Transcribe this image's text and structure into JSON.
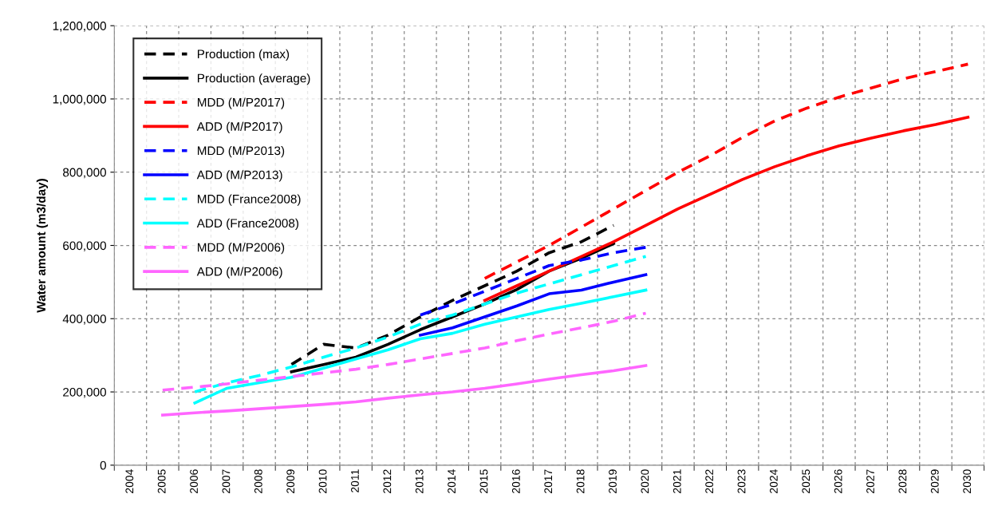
{
  "chart_data": {
    "type": "line",
    "ylabel": "Water amount (m3/day)",
    "categories": [
      "2004",
      "2005",
      "2006",
      "2007",
      "2008",
      "2009",
      "2010",
      "2011",
      "2012",
      "2013",
      "2014",
      "2015",
      "2016",
      "2017",
      "2018",
      "2019",
      "2020",
      "2021",
      "2022",
      "2023",
      "2024",
      "2025",
      "2026",
      "2027",
      "2028",
      "2029",
      "2030"
    ],
    "ylim": [
      0,
      1200000
    ],
    "yticks": [
      0,
      {
        "value": 200000,
        "label": "200,000"
      },
      {
        "value": 400000,
        "label": "400,000"
      },
      {
        "value": 600000,
        "label": "600,000"
      },
      {
        "value": 800000,
        "label": "800,000"
      },
      {
        "value": 1000000,
        "label": "1,000,000"
      },
      {
        "value": 1200000,
        "label": "1,200,000"
      }
    ],
    "grid": true,
    "legend": "top left",
    "marker": "none",
    "series": [
      {
        "name": "Production (max)",
        "color": "#000000",
        "line_style": "dashed",
        "values": [
          null,
          null,
          null,
          null,
          null,
          275000,
          330000,
          320000,
          355000,
          405000,
          450000,
          490000,
          530000,
          580000,
          610000,
          655000,
          null,
          null,
          null,
          null,
          null,
          null,
          null,
          null,
          null,
          null,
          null
        ]
      },
      {
        "name": "Production (average)",
        "color": "#000000",
        "line_style": "solid",
        "values": [
          null,
          null,
          null,
          null,
          null,
          255000,
          275000,
          295000,
          330000,
          370000,
          405000,
          440000,
          480000,
          530000,
          565000,
          605000,
          null,
          null,
          null,
          null,
          null,
          null,
          null,
          null,
          null,
          null,
          null
        ]
      },
      {
        "name": "MDD (M/P2017)",
        "color": "#ff0000",
        "line_style": "dashed",
        "values": [
          null,
          null,
          null,
          null,
          null,
          null,
          null,
          null,
          null,
          null,
          null,
          510000,
          555000,
          600000,
          650000,
          700000,
          750000,
          800000,
          845000,
          895000,
          940000,
          975000,
          1005000,
          1030000,
          1055000,
          1075000,
          1095000
        ]
      },
      {
        "name": "ADD (M/P2017)",
        "color": "#ff0000",
        "line_style": "solid",
        "values": [
          null,
          null,
          null,
          null,
          null,
          null,
          null,
          null,
          null,
          null,
          null,
          450000,
          490000,
          530000,
          570000,
          610000,
          655000,
          700000,
          740000,
          780000,
          815000,
          845000,
          872000,
          893000,
          913000,
          930000,
          950000
        ]
      },
      {
        "name": "MDD (M/P2013)",
        "color": "#0000ff",
        "line_style": "dashed",
        "values": [
          null,
          null,
          null,
          null,
          null,
          null,
          null,
          null,
          null,
          410000,
          440000,
          475000,
          510000,
          545000,
          560000,
          580000,
          595000,
          null,
          null,
          null,
          null,
          null,
          null,
          null,
          null,
          null,
          null
        ]
      },
      {
        "name": "ADD (M/P2013)",
        "color": "#0000ff",
        "line_style": "solid",
        "values": [
          null,
          null,
          null,
          null,
          null,
          null,
          null,
          null,
          null,
          355000,
          375000,
          405000,
          435000,
          468000,
          478000,
          500000,
          520000,
          null,
          null,
          null,
          null,
          null,
          null,
          null,
          null,
          null,
          null
        ]
      },
      {
        "name": "MDD (France2008)",
        "color": "#00ffff",
        "line_style": "dashed",
        "values": [
          null,
          null,
          200000,
          225000,
          245000,
          268000,
          295000,
          320000,
          350000,
          385000,
          410000,
          440000,
          470000,
          495000,
          520000,
          545000,
          570000,
          null,
          null,
          null,
          null,
          null,
          null,
          null,
          null,
          null,
          null
        ]
      },
      {
        "name": "ADD (France2008)",
        "color": "#00ffff",
        "line_style": "solid",
        "values": [
          null,
          null,
          170000,
          210000,
          225000,
          240000,
          265000,
          290000,
          315000,
          345000,
          360000,
          385000,
          405000,
          425000,
          442000,
          460000,
          478000,
          null,
          null,
          null,
          null,
          null,
          null,
          null,
          null,
          null,
          null
        ]
      },
      {
        "name": "MDD (M/P2006)",
        "color": "#ff66ff",
        "line_style": "dashed",
        "values": [
          null,
          205000,
          213000,
          222000,
          232000,
          242000,
          252000,
          262000,
          275000,
          290000,
          305000,
          320000,
          340000,
          358000,
          375000,
          393000,
          415000,
          null,
          null,
          null,
          null,
          null,
          null,
          null,
          null,
          null,
          null
        ]
      },
      {
        "name": "ADD (M/P2006)",
        "color": "#ff66ff",
        "line_style": "solid",
        "values": [
          null,
          137000,
          143000,
          148000,
          154000,
          160000,
          166000,
          173000,
          183000,
          192000,
          200000,
          210000,
          222000,
          235000,
          247000,
          258000,
          272000,
          null,
          null,
          null,
          null,
          null,
          null,
          null,
          null,
          null,
          null
        ]
      }
    ]
  }
}
